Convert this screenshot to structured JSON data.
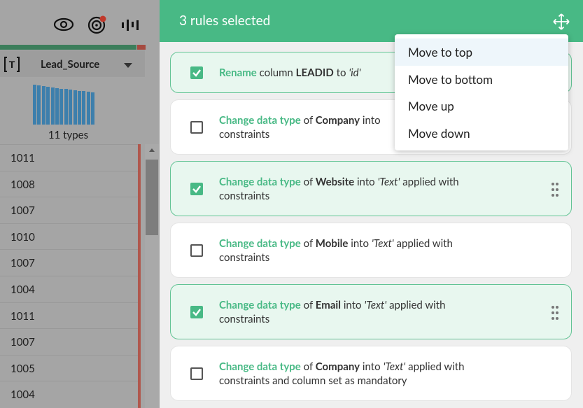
{
  "column": {
    "name": "Lead_Source",
    "summary": "11 types"
  },
  "rows": [
    1011,
    1008,
    1007,
    1010,
    1007,
    1004,
    1011,
    1007,
    1005,
    1004
  ],
  "panel": {
    "title": "3 rules selected"
  },
  "rules": [
    {
      "checked": true,
      "lines": [
        [
          {
            "text": "Rename",
            "style": "action"
          },
          {
            "text": "column",
            "style": "plain"
          },
          {
            "text": "LEADID",
            "style": "bold"
          },
          {
            "text": "to",
            "style": "plain"
          },
          {
            "text": "'id'",
            "style": "italic"
          }
        ]
      ]
    },
    {
      "checked": false,
      "lines": [
        [
          {
            "text": "Change data type",
            "style": "action"
          },
          {
            "text": "of",
            "style": "plain"
          },
          {
            "text": "Company",
            "style": "bold"
          },
          {
            "text": "into",
            "style": "plain"
          }
        ],
        [
          {
            "text": "constraints",
            "style": "plain"
          }
        ]
      ]
    },
    {
      "checked": true,
      "lines": [
        [
          {
            "text": "Change data type",
            "style": "action"
          },
          {
            "text": "of",
            "style": "plain"
          },
          {
            "text": "Website",
            "style": "bold"
          },
          {
            "text": "into",
            "style": "plain"
          },
          {
            "text": "'Text'",
            "style": "italic"
          },
          {
            "text": "applied with",
            "style": "plain"
          }
        ],
        [
          {
            "text": "constraints",
            "style": "plain"
          }
        ]
      ]
    },
    {
      "checked": false,
      "lines": [
        [
          {
            "text": "Change data type",
            "style": "action"
          },
          {
            "text": "of",
            "style": "plain"
          },
          {
            "text": "Mobile",
            "style": "bold"
          },
          {
            "text": "into",
            "style": "plain"
          },
          {
            "text": "'Text'",
            "style": "italic"
          },
          {
            "text": "applied with",
            "style": "plain"
          }
        ],
        [
          {
            "text": "constraints",
            "style": "plain"
          }
        ]
      ]
    },
    {
      "checked": true,
      "lines": [
        [
          {
            "text": "Change data type",
            "style": "action"
          },
          {
            "text": "of",
            "style": "plain"
          },
          {
            "text": "Email",
            "style": "bold"
          },
          {
            "text": "into",
            "style": "plain"
          },
          {
            "text": "'Text'",
            "style": "italic"
          },
          {
            "text": "applied with",
            "style": "plain"
          }
        ],
        [
          {
            "text": "constraints",
            "style": "plain"
          }
        ]
      ]
    },
    {
      "checked": false,
      "lines": [
        [
          {
            "text": "Change data type",
            "style": "action"
          },
          {
            "text": "of",
            "style": "plain"
          },
          {
            "text": "Company",
            "style": "bold"
          },
          {
            "text": "into",
            "style": "plain"
          },
          {
            "text": "'Text'",
            "style": "italic"
          },
          {
            "text": "applied with",
            "style": "plain"
          }
        ],
        [
          {
            "text": "constraints and column set as mandatory",
            "style": "plain"
          }
        ]
      ]
    }
  ],
  "menu": {
    "items": [
      "Move to top",
      "Move to bottom",
      "Move up",
      "Move down"
    ],
    "highlighted": 0
  }
}
